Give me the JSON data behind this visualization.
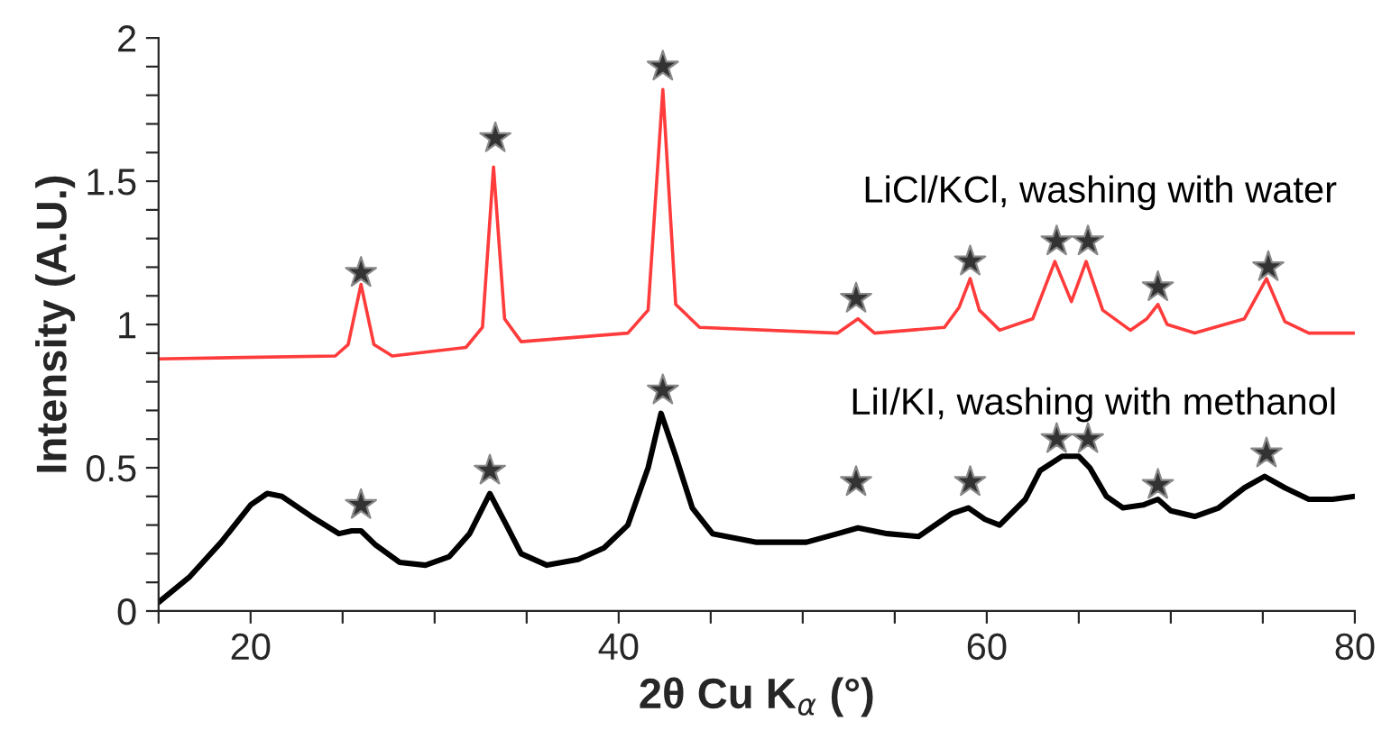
{
  "chart_data": {
    "type": "line",
    "xlabel": "2θ Cu K$_{α}$ (°)",
    "ylabel": "Intensity (A.U.)",
    "xlim": [
      15,
      80
    ],
    "xticks": [
      {
        "value": 15,
        "label": null
      },
      20,
      {
        "value": 25,
        "label": null
      },
      {
        "value": 30,
        "label": null
      },
      {
        "value": 35,
        "label": null
      },
      40,
      {
        "value": 45,
        "label": null
      },
      {
        "value": 50,
        "label": null
      },
      {
        "value": 55,
        "label": null
      },
      60,
      {
        "value": 65,
        "label": null
      },
      {
        "value": 70,
        "label": null
      },
      {
        "value": 75,
        "label": null
      },
      80
    ],
    "ylim": [
      0,
      2
    ],
    "yticks": [
      0,
      {
        "value": 0.1,
        "label": null
      },
      {
        "value": 0.2,
        "label": null
      },
      {
        "value": 0.3,
        "label": null
      },
      {
        "value": 0.4,
        "label": null
      },
      0.5,
      {
        "value": 0.6,
        "label": null
      },
      {
        "value": 0.7,
        "label": null
      },
      {
        "value": 0.8,
        "label": null
      },
      {
        "value": 0.9,
        "label": null
      },
      1,
      {
        "value": 1.1,
        "label": null
      },
      {
        "value": 1.2,
        "label": null
      },
      {
        "value": 1.3,
        "label": null
      },
      {
        "value": 1.4,
        "label": null
      },
      1.5,
      {
        "value": 1.6,
        "label": null
      },
      {
        "value": 1.7,
        "label": null
      },
      {
        "value": 1.8,
        "label": null
      },
      {
        "value": 1.9,
        "label": null
      },
      2
    ],
    "grid": false,
    "series": [
      {
        "name": "LiCl/KCl, washing with water",
        "color": "#ff3b3b",
        "marker": "none",
        "x": [
          15,
          24.6,
          25.3,
          26.0,
          26.7,
          27.7,
          31.7,
          32.6,
          33.2,
          33.8,
          34.7,
          40.5,
          41.6,
          42.4,
          43.1,
          44.4,
          51.9,
          53.0,
          53.9,
          57.7,
          58.5,
          59.1,
          59.6,
          60.7,
          62.5,
          63.7,
          64.6,
          65.4,
          66.3,
          67.8,
          68.7,
          69.3,
          69.8,
          71.3,
          74.0,
          75.2,
          76.2,
          77.5,
          80
        ],
        "values": [
          0.88,
          0.89,
          0.93,
          1.14,
          0.93,
          0.89,
          0.92,
          0.99,
          1.55,
          1.02,
          0.94,
          0.97,
          1.05,
          1.82,
          1.07,
          0.99,
          0.97,
          1.02,
          0.97,
          0.99,
          1.06,
          1.16,
          1.05,
          0.98,
          1.02,
          1.22,
          1.08,
          1.22,
          1.05,
          0.98,
          1.02,
          1.07,
          1.0,
          0.97,
          1.02,
          1.16,
          1.01,
          0.97,
          0.97
        ]
      },
      {
        "name": "LiI/KI, washing with methanol",
        "color": "#000000",
        "marker": "none",
        "x": [
          15,
          16.7,
          18.4,
          20.0,
          20.9,
          21.7,
          23.3,
          24.8,
          25.5,
          26.0,
          26.8,
          28.1,
          29.5,
          30.8,
          31.9,
          33.0,
          33.9,
          34.7,
          36.1,
          37.8,
          39.2,
          40.5,
          41.6,
          42.3,
          43.1,
          44.0,
          45.1,
          47.5,
          50.2,
          51.9,
          53.0,
          54.6,
          56.3,
          58.1,
          59.0,
          59.9,
          60.7,
          62.1,
          62.9,
          64.1,
          65.0,
          65.6,
          66.5,
          67.4,
          68.5,
          69.3,
          70.0,
          71.3,
          72.6,
          74.0,
          75.1,
          76.2,
          77.5,
          78.8,
          80
        ],
        "values": [
          0.03,
          0.12,
          0.24,
          0.37,
          0.41,
          0.4,
          0.33,
          0.27,
          0.28,
          0.28,
          0.23,
          0.17,
          0.16,
          0.19,
          0.27,
          0.41,
          0.3,
          0.2,
          0.16,
          0.18,
          0.22,
          0.3,
          0.5,
          0.69,
          0.54,
          0.36,
          0.27,
          0.24,
          0.24,
          0.27,
          0.29,
          0.27,
          0.26,
          0.34,
          0.36,
          0.32,
          0.3,
          0.39,
          0.49,
          0.54,
          0.54,
          0.5,
          0.4,
          0.36,
          0.37,
          0.39,
          0.35,
          0.33,
          0.36,
          0.43,
          0.47,
          0.43,
          0.39,
          0.39,
          0.4
        ]
      },
      {
        "color": "#333333",
        "type": "scatter",
        "marker": "star",
        "x": [
          26.0,
          33.3,
          42.4,
          52.9,
          59.1,
          63.8,
          65.5,
          69.3,
          75.3,
          26.0,
          33.0,
          42.4,
          52.9,
          59.1,
          63.8,
          65.5,
          69.3,
          75.2
        ],
        "values": [
          1.18,
          1.65,
          1.9,
          1.09,
          1.22,
          1.29,
          1.29,
          1.13,
          1.2,
          0.37,
          0.49,
          0.77,
          0.45,
          0.45,
          0.6,
          0.6,
          0.44,
          0.55
        ]
      }
    ]
  }
}
